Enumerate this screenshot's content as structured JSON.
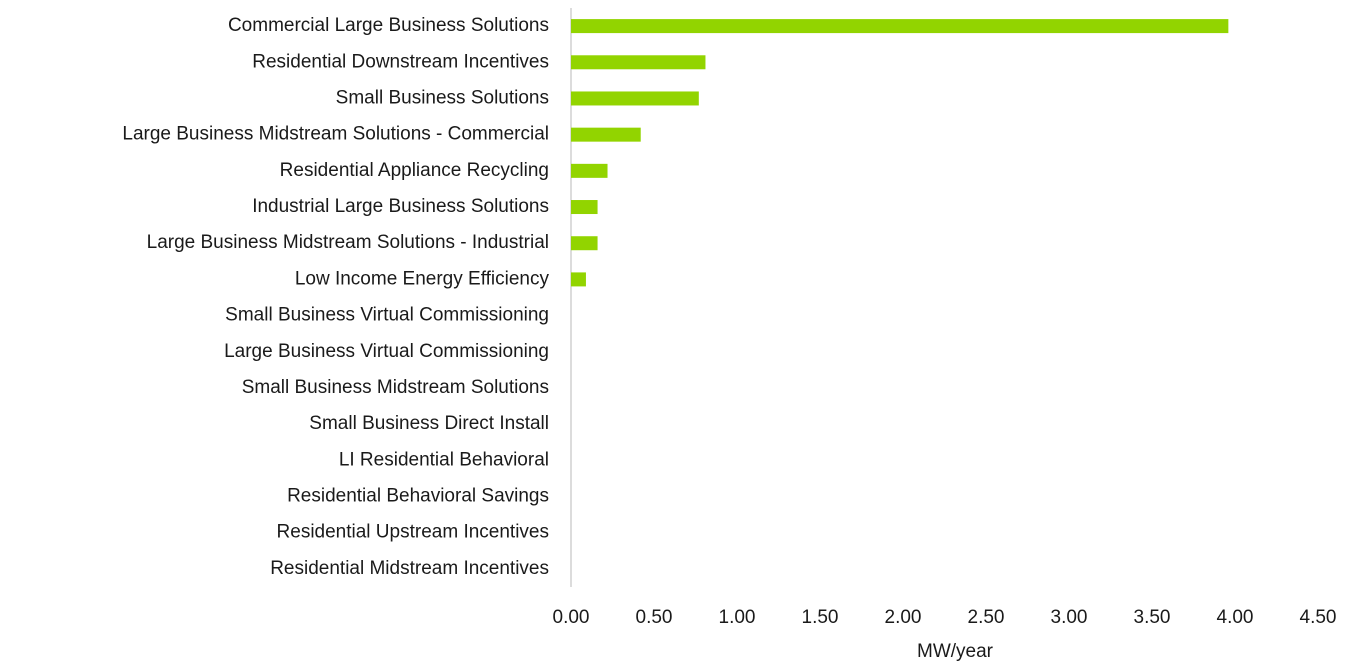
{
  "chart_data": {
    "type": "bar",
    "orientation": "horizontal",
    "categories": [
      "Commercial Large Business Solutions",
      "Residential Downstream Incentives",
      "Small Business Solutions",
      "Large Business Midstream Solutions - Commercial",
      "Residential Appliance Recycling",
      "Industrial Large Business Solutions",
      "Large Business Midstream Solutions - Industrial",
      "Low Income Energy Efficiency",
      "Small Business Virtual Commissioning",
      "Large Business Virtual Commissioning",
      "Small Business Midstream Solutions",
      "Small Business Direct Install",
      "LI Residential Behavioral",
      "Residential Behavioral Savings",
      "Residential Upstream Incentives",
      "Residential Midstream Incentives"
    ],
    "values": [
      3.96,
      0.81,
      0.77,
      0.42,
      0.22,
      0.16,
      0.16,
      0.09,
      0,
      0,
      0,
      0,
      0,
      0,
      0,
      0
    ],
    "color": "#92d400",
    "xlabel": "MW/year",
    "xlim": [
      0,
      4.5
    ],
    "xticks": [
      {
        "value": 0,
        "label": "0.00"
      },
      {
        "value": 0.5,
        "label": "0.50"
      },
      {
        "value": 1,
        "label": "1.00"
      },
      {
        "value": 1.5,
        "label": "1.50"
      },
      {
        "value": 2,
        "label": "2.00"
      },
      {
        "value": 2.5,
        "label": "2.50"
      },
      {
        "value": 3,
        "label": "3.00"
      },
      {
        "value": 3.5,
        "label": "3.50"
      },
      {
        "value": 4,
        "label": "4.00"
      },
      {
        "value": 4.5,
        "label": "4.50"
      }
    ],
    "grid": false
  }
}
